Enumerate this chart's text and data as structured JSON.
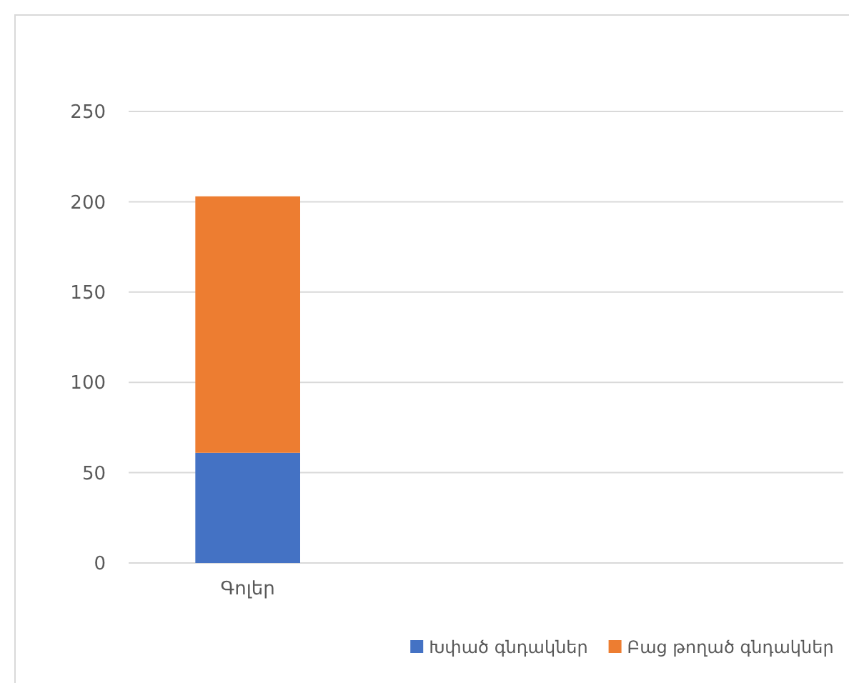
{
  "chart_data": {
    "type": "bar",
    "stacked": true,
    "categories": [
      "Գոլեր",
      null,
      null
    ],
    "series": [
      {
        "name": "Խփած գնդակներ",
        "color": "#4472c4",
        "values": [
          61,
          null,
          null
        ]
      },
      {
        "name": "Բաց թողած գնդակներ",
        "color": "#ed7d31",
        "values": [
          142,
          null,
          null
        ]
      }
    ],
    "ylim": [
      0,
      250
    ],
    "yticks": [
      0,
      50,
      100,
      150,
      200,
      250
    ],
    "grid": "y",
    "legend": "bottom"
  }
}
